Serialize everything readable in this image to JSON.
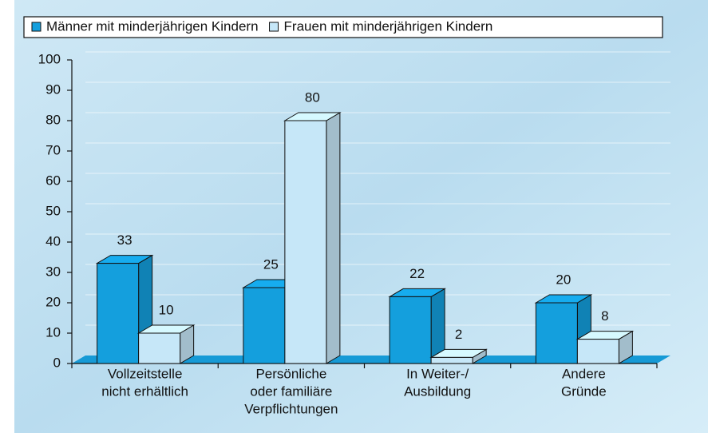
{
  "chart_data": {
    "type": "bar3d",
    "categories": [
      [
        "Vollzeitstelle",
        "nicht erhältlich"
      ],
      [
        "Persönliche",
        "oder familiäre",
        "Verpflichtungen"
      ],
      [
        "In Weiter-/",
        "Ausbildung"
      ],
      [
        "Andere",
        "Gründe"
      ]
    ],
    "series": [
      {
        "name": "Männer mit minderjährigen Kindern",
        "color": "#149fdd",
        "values": [
          33,
          25,
          22,
          20
        ]
      },
      {
        "name": "Frauen mit minderjährigen Kindern",
        "color": "#c6e7f8",
        "values": [
          10,
          80,
          2,
          8
        ]
      }
    ],
    "ylim": [
      0,
      100
    ],
    "yticks": [
      0,
      10,
      20,
      30,
      40,
      50,
      60,
      70,
      80,
      90,
      100
    ],
    "grid": true
  }
}
